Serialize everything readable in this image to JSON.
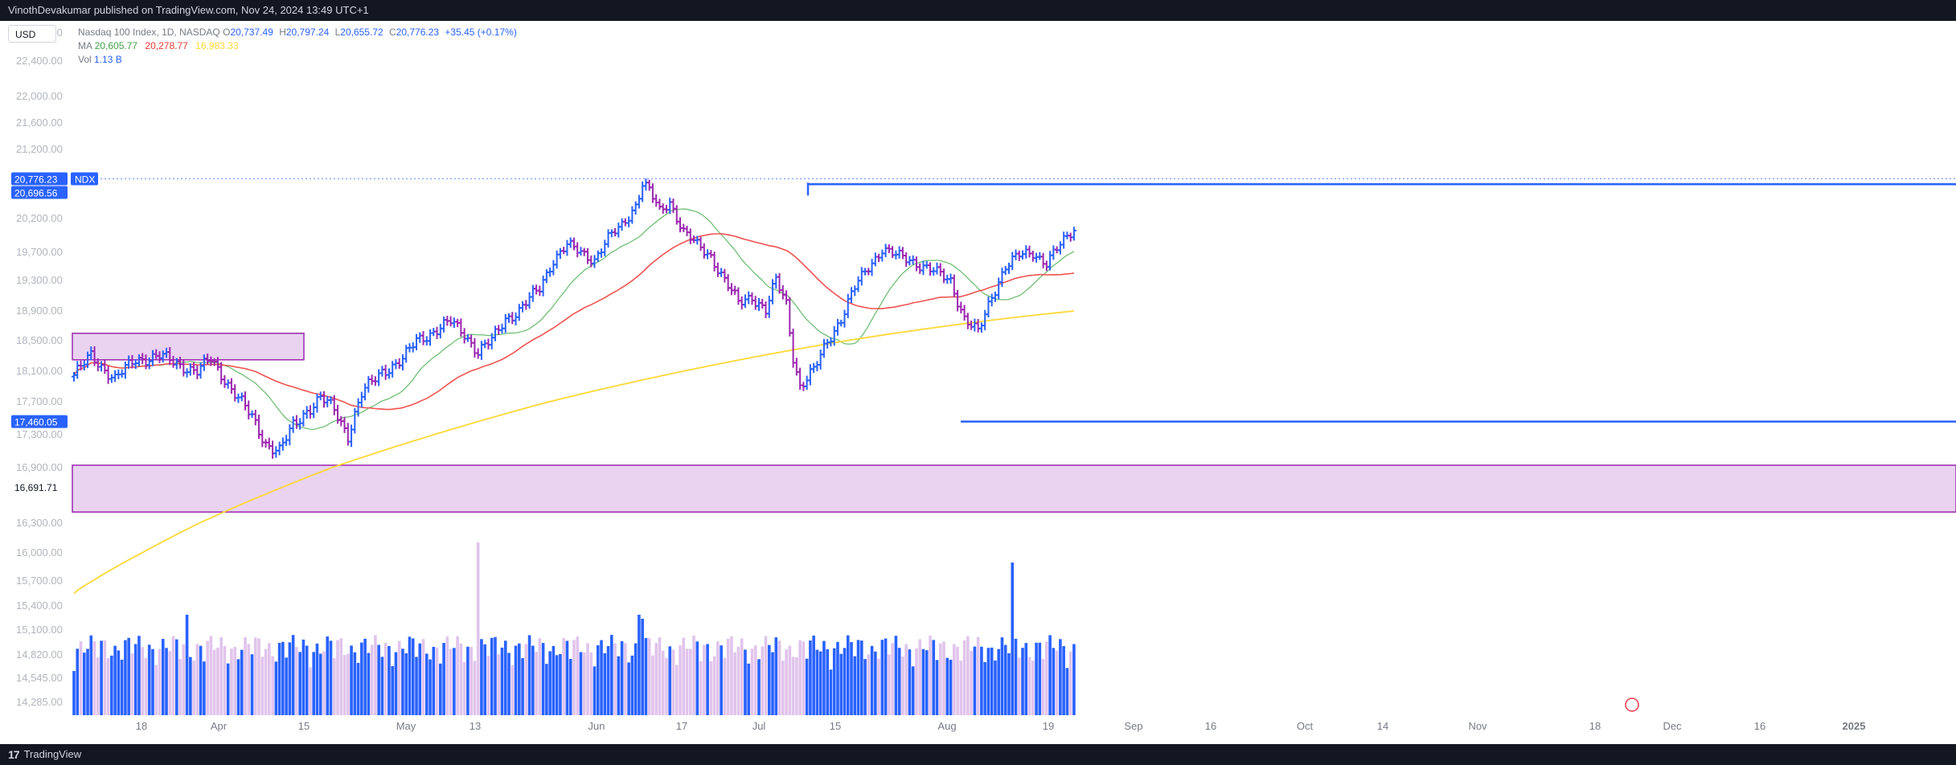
{
  "publisher_line": "VinothDevakumar published on TradingView.com, Nov 24, 2024 13:49 UTC+1",
  "currency": "USD",
  "legend": {
    "title": "Nasdaq 100 Index, 1D, NASDAQ",
    "o_label": "O",
    "o": "20,737.49",
    "h_label": "H",
    "h": "20,797.24",
    "l_label": "L",
    "l": "20,655.72",
    "c_label": "C",
    "c": "20,776.23",
    "chg": "+35.45 (+0.17%)",
    "ma_label": "MA",
    "ma1": "20,605.77",
    "ma2": "20,278.77",
    "ma3": "16,983.33",
    "vol_label": "Vol",
    "vol": "1.13 B"
  },
  "brand": "TradingView",
  "chart_data": {
    "type": "bar",
    "symbol_tag": "NDX",
    "price_ticks": [
      "22,800.00",
      "22,400.00",
      "22,000.00",
      "21,600.00",
      "21,200.00",
      "20,200.00",
      "19,700.00",
      "19,300.00",
      "18,900.00",
      "18,500.00",
      "18,100.00",
      "17,700.00",
      "17,300.00",
      "16,900.00",
      "16,300.00",
      "16,000.00",
      "15,700.00",
      "15,400.00",
      "15,100.00",
      "14,820.00",
      "14,545.00",
      "14,285.00"
    ],
    "price_tick_values": [
      22800,
      22400,
      22000,
      21600,
      21200,
      20200,
      19700,
      19300,
      18900,
      18500,
      18100,
      17700,
      17300,
      16900,
      16300,
      16000,
      15700,
      15400,
      15100,
      14820,
      14545,
      14285
    ],
    "last_price_label": "20,776.23",
    "last_price": 20776.23,
    "level_label_2": "20,696.56",
    "level_2": 20696.56,
    "level_label_3": "17,460.05",
    "level_3": 17460.05,
    "level_label_4": "16,691.71",
    "level_4": 16691.71,
    "x_ticks": [
      "18",
      "Apr",
      "15",
      "May",
      "13",
      "Jun",
      "17",
      "Jul",
      "15",
      "Aug",
      "19",
      "Sep",
      "16",
      "Oct",
      "14",
      "Nov",
      "18",
      "Dec",
      "16",
      "2025"
    ],
    "colors": {
      "up": "#2962ff",
      "down": "#9c27b0",
      "vol_up": "#2962ff",
      "vol_down": "#e1c4ec",
      "ma_fast": "#66bb6a",
      "ma_mid": "#ef5350",
      "ma_slow": "#fdd835",
      "zone_fill": "#e9d3f0",
      "zone_stroke": "#9c27b0",
      "level_line": "#2962ff"
    },
    "key_points": [
      [
        0,
        18050
      ],
      [
        5,
        18300
      ],
      [
        12,
        18000
      ],
      [
        18,
        18250
      ],
      [
        25,
        18300
      ],
      [
        30,
        18200
      ],
      [
        36,
        18100
      ],
      [
        40,
        18250
      ],
      [
        44,
        18000
      ],
      [
        48,
        17750
      ],
      [
        52,
        17500
      ],
      [
        56,
        17200
      ],
      [
        60,
        17100
      ],
      [
        64,
        17400
      ],
      [
        68,
        17600
      ],
      [
        72,
        17750
      ],
      [
        76,
        17600
      ],
      [
        80,
        17300
      ],
      [
        84,
        17800
      ],
      [
        90,
        18100
      ],
      [
        96,
        18250
      ],
      [
        100,
        18500
      ],
      [
        106,
        18650
      ],
      [
        110,
        18750
      ],
      [
        114,
        18600
      ],
      [
        118,
        18350
      ],
      [
        122,
        18500
      ],
      [
        126,
        18800
      ],
      [
        130,
        18900
      ],
      [
        136,
        19200
      ],
      [
        140,
        19600
      ],
      [
        144,
        19800
      ],
      [
        148,
        19700
      ],
      [
        152,
        19600
      ],
      [
        156,
        19900
      ],
      [
        160,
        20100
      ],
      [
        164,
        20400
      ],
      [
        166,
        20700
      ],
      [
        168,
        20600
      ],
      [
        171,
        20300
      ],
      [
        174,
        20450
      ],
      [
        178,
        20000
      ],
      [
        182,
        19800
      ],
      [
        186,
        19650
      ],
      [
        190,
        19300
      ],
      [
        194,
        19000
      ],
      [
        198,
        19100
      ],
      [
        202,
        18900
      ],
      [
        205,
        19300
      ],
      [
        208,
        19000
      ],
      [
        210,
        18300
      ],
      [
        212,
        17900
      ],
      [
        216,
        18100
      ],
      [
        220,
        18500
      ],
      [
        224,
        18800
      ],
      [
        228,
        19200
      ],
      [
        232,
        19500
      ],
      [
        236,
        19750
      ],
      [
        240,
        19650
      ],
      [
        244,
        19600
      ],
      [
        248,
        19500
      ],
      [
        252,
        19400
      ],
      [
        256,
        19300
      ],
      [
        260,
        18800
      ],
      [
        264,
        18600
      ],
      [
        268,
        19100
      ],
      [
        272,
        19500
      ],
      [
        276,
        19650
      ],
      [
        280,
        19700
      ],
      [
        284,
        19550
      ],
      [
        288,
        19800
      ],
      [
        292,
        20050
      ],
      [
        296,
        19950
      ],
      [
        300,
        19850
      ],
      [
        304,
        20000
      ],
      [
        308,
        20150
      ],
      [
        312,
        20200
      ],
      [
        316,
        20300
      ],
      [
        320,
        20100
      ],
      [
        324,
        20250
      ],
      [
        328,
        20400
      ],
      [
        332,
        20200
      ],
      [
        336,
        20250
      ],
      [
        340,
        20400
      ],
      [
        344,
        20000
      ],
      [
        348,
        20100
      ],
      [
        352,
        20400
      ],
      [
        356,
        20900
      ],
      [
        360,
        21100
      ],
      [
        364,
        21000
      ],
      [
        366,
        20800
      ],
      [
        368,
        20550
      ],
      [
        372,
        20650
      ],
      [
        376,
        20750
      ]
    ]
  }
}
